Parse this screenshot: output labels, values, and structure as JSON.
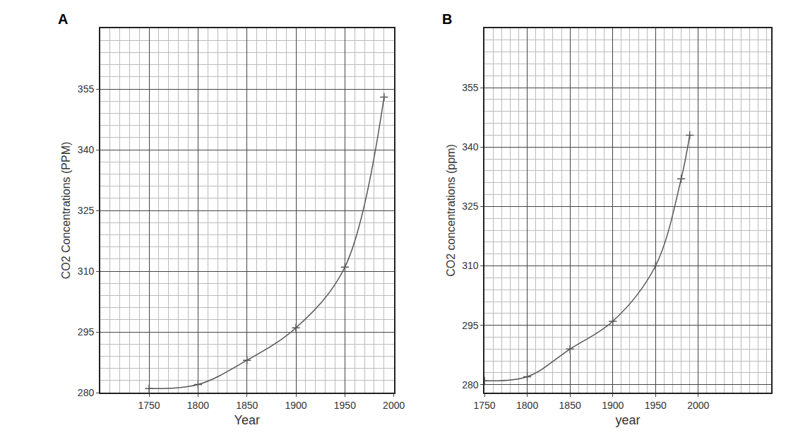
{
  "chart_data": [
    {
      "type": "line",
      "title": "A",
      "x_label": "Year",
      "y_label": "CO2 Concentrations (PPM)",
      "x": [
        1750,
        1800,
        1850,
        1900,
        1950,
        1990
      ],
      "values": [
        281,
        282,
        288,
        296,
        311,
        353
      ],
      "color": "#555555",
      "marker": "cross",
      "grid": true,
      "xlim": [
        1700,
        2000
      ],
      "xticks": [
        1750,
        1800,
        1850,
        1900,
        1950,
        2000
      ],
      "ylim": [
        280,
        370
      ],
      "yticks": [
        280,
        295,
        310,
        325,
        340,
        355
      ]
    },
    {
      "type": "line",
      "title": "B",
      "x_label": "year",
      "y_label": "CO2 concentrations (ppm)",
      "x": [
        1750,
        1800,
        1850,
        1900,
        1950,
        1980,
        1990
      ],
      "values": [
        281,
        282,
        289,
        296,
        310,
        332,
        343
      ],
      "color": "#555555",
      "marker": "cross",
      "grid": true,
      "xlim": [
        1750,
        2085
      ],
      "xticks": [
        1750,
        1800,
        1850,
        1900,
        1950,
        2000
      ],
      "ylim": [
        278,
        370
      ],
      "yticks": [
        280,
        295,
        310,
        325,
        340,
        355
      ]
    }
  ]
}
